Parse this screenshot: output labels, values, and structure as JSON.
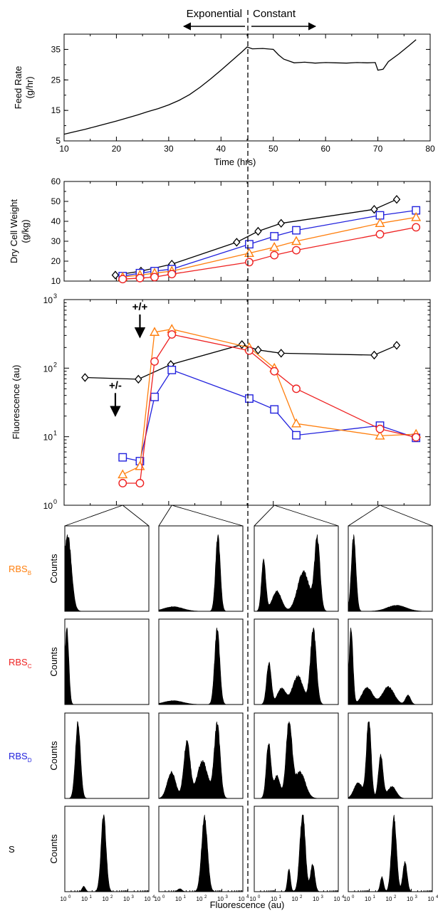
{
  "phase_labels": {
    "left": "Exponential",
    "right": "Constant"
  },
  "shared_x_label": "Fluorescence (au)",
  "colors": {
    "RBS_B": "#ff7f0e",
    "RBS_C": "#ee2222",
    "RBS_D": "#2222dd",
    "S": "#000000",
    "black": "#000000"
  },
  "histogram_rows": [
    {
      "label": "RBS",
      "subscript": "B",
      "color_key": "RBS_B",
      "ylabel": "Counts"
    },
    {
      "label": "RBS",
      "subscript": "C",
      "color_key": "RBS_C",
      "ylabel": "Counts"
    },
    {
      "label": "RBS",
      "subscript": "D",
      "color_key": "RBS_D",
      "ylabel": "Counts"
    },
    {
      "label": "S",
      "subscript": "",
      "color_key": "S",
      "ylabel": "Counts"
    }
  ],
  "chart_data": [
    {
      "id": "feed-rate",
      "type": "line",
      "xlabel": "Time (hrs)",
      "ylabel": [
        "Feed Rate",
        "(g/hr)"
      ],
      "xlim": [
        10,
        80
      ],
      "ylim": [
        5,
        40
      ],
      "xticks": [
        10,
        20,
        30,
        40,
        50,
        60,
        70,
        80
      ],
      "yticks": [
        5,
        15,
        25,
        35
      ],
      "series": [
        {
          "color": "#000000",
          "x": [
            10,
            12,
            14,
            16,
            18,
            20,
            22,
            24,
            26,
            28,
            30,
            32,
            34,
            36,
            38,
            40,
            42,
            44,
            45,
            46,
            48,
            50,
            51,
            52,
            54,
            56,
            58,
            60,
            62,
            64,
            66,
            68,
            69.5,
            70,
            71,
            72,
            74,
            76,
            77.3
          ],
          "y": [
            7.2,
            8,
            8.8,
            9.7,
            10.6,
            11.5,
            12.5,
            13.5,
            14.6,
            15.6,
            16.8,
            18.3,
            20.2,
            22.6,
            25.3,
            28.2,
            31.2,
            34.2,
            35.8,
            35.2,
            35.3,
            35,
            33.2,
            31.8,
            30.6,
            30.8,
            30.5,
            30.7,
            30.6,
            30.5,
            30.7,
            30.6,
            30.7,
            28.2,
            28.5,
            31,
            33.5,
            36.3,
            38.2
          ]
        }
      ]
    },
    {
      "id": "dry-cell-weight",
      "type": "line",
      "markers": true,
      "ylabel": [
        "Dry Cell Weight",
        "(g/kg)"
      ],
      "xlim": [
        10,
        80
      ],
      "ylim": [
        10,
        60
      ],
      "xticks": [
        10,
        20,
        30,
        40,
        50,
        60,
        70,
        80
      ],
      "yticks": [
        10,
        20,
        30,
        40,
        50,
        60
      ],
      "series": [
        {
          "name": "S",
          "color_key": "black",
          "marker": "diamond",
          "x": [
            19.8,
            24.7,
            30.6,
            43,
            47.1,
            51.5,
            69.3,
            73.6
          ],
          "y": [
            13,
            15,
            18.5,
            29.5,
            35,
            39,
            46,
            51
          ]
        },
        {
          "name": "RBS_D",
          "color_key": "RBS_D",
          "marker": "square",
          "x": [
            21.2,
            24.5,
            27.3,
            30.6,
            45.4,
            50.2,
            54.4,
            70.4,
            77.3
          ],
          "y": [
            12.5,
            14,
            15,
            16,
            28.5,
            32.5,
            35.5,
            43,
            45.5
          ]
        },
        {
          "name": "RBS_B",
          "color_key": "RBS_B",
          "marker": "triangle",
          "x": [
            21.2,
            24.5,
            27.3,
            30.6,
            45.4,
            50.2,
            54.4,
            70.4,
            77.3
          ],
          "y": [
            12,
            13,
            14,
            15,
            24,
            27,
            30,
            39,
            42
          ]
        },
        {
          "name": "RBS_C",
          "color_key": "RBS_C",
          "marker": "circle",
          "x": [
            21.2,
            24.5,
            27.3,
            30.6,
            45.4,
            50.2,
            54.4,
            70.4,
            77.3
          ],
          "y": [
            11,
            11.5,
            12,
            13.5,
            19.5,
            23,
            25.5,
            33.5,
            37
          ]
        }
      ]
    },
    {
      "id": "fluorescence",
      "type": "line",
      "markers": true,
      "ylog": true,
      "ylabel": [
        "Fluorescence (au)"
      ],
      "xlim": [
        10,
        80
      ],
      "ylim": [
        1,
        1000
      ],
      "xticks": [
        10,
        20,
        30,
        40,
        50,
        60,
        70,
        80
      ],
      "yticks": [
        1,
        10,
        100,
        1000
      ],
      "annotations": [
        {
          "text": "+/+",
          "x": 24.5,
          "y": 700
        },
        {
          "text": "+/-",
          "x": 19.8,
          "y": 50
        }
      ],
      "series": [
        {
          "name": "S",
          "color_key": "black",
          "marker": "diamond",
          "x": [
            14,
            24.2,
            30.4,
            44,
            47.1,
            51.5,
            69.3,
            73.6
          ],
          "y": [
            73,
            69,
            113,
            221,
            184,
            165,
            155,
            215
          ]
        },
        {
          "name": "RBS_D",
          "color_key": "RBS_D",
          "marker": "square",
          "x": [
            21.2,
            24.5,
            27.3,
            30.6,
            45.4,
            50.2,
            54.4,
            70.4,
            77.3
          ],
          "y": [
            5,
            4.4,
            38,
            94,
            36,
            25,
            10.5,
            14.5,
            9.6
          ]
        },
        {
          "name": "RBS_B",
          "color_key": "RBS_B",
          "marker": "triangle",
          "x": [
            21.2,
            24.5,
            27.3,
            30.6,
            45.4,
            50.2,
            54.4,
            70.4,
            77.3
          ],
          "y": [
            2.8,
            3.7,
            335,
            370,
            200,
            100,
            15.5,
            10.3,
            10.9
          ]
        },
        {
          "name": "RBS_C",
          "color_key": "RBS_C",
          "marker": "circle",
          "x": [
            21.2,
            24.5,
            27.3,
            30.6,
            45.4,
            50.2,
            54.4,
            70.4,
            77.3
          ],
          "y": [
            2.1,
            2.1,
            125,
            310,
            180,
            90,
            50,
            13,
            9.8
          ]
        }
      ]
    },
    {
      "id": "histograms",
      "type": "area",
      "xlog": true,
      "xlim": [
        1,
        10000
      ],
      "xticks": [
        1,
        10,
        100,
        1000,
        10000
      ],
      "ylabel": "Counts",
      "xlabel": "Fluorescence (au)",
      "column_times_hrs": [
        21.2,
        30.6,
        50.2,
        70.4
      ],
      "rows": {
        "RBS_B": [
          [
            [
              1.35,
              1.0,
              0.18
            ]
          ],
          [
            [
              650,
              1.0,
              0.11
            ],
            [
              5,
              0.06,
              0.45
            ]
          ],
          [
            [
              1000,
              1.0,
              0.13
            ],
            [
              220,
              0.55,
              0.28
            ],
            [
              2.8,
              0.72,
              0.1
            ],
            [
              12,
              0.28,
              0.22
            ]
          ],
          [
            [
              1.8,
              1.0,
              0.11
            ],
            [
              200,
              0.08,
              0.45
            ]
          ]
        ],
        "RBS_C": [
          [
            [
              1.25,
              1.0,
              0.09
            ]
          ],
          [
            [
              600,
              1.0,
              0.12
            ],
            [
              5,
              0.05,
              0.45
            ]
          ],
          [
            [
              650,
              1.0,
              0.14
            ],
            [
              120,
              0.38,
              0.25
            ],
            [
              5,
              0.55,
              0.11
            ],
            [
              20,
              0.22,
              0.2
            ]
          ],
          [
            [
              1.35,
              1.0,
              0.09
            ],
            [
              8,
              0.22,
              0.25
            ],
            [
              80,
              0.23,
              0.28
            ],
            [
              700,
              0.12,
              0.12
            ]
          ]
        ],
        "RBS_D": [
          [
            [
              4.2,
              1.0,
              0.12
            ]
          ],
          [
            [
              600,
              1.0,
              0.14
            ],
            [
              22,
              0.78,
              0.15
            ],
            [
              120,
              0.5,
              0.25
            ],
            [
              4,
              0.35,
              0.2
            ]
          ],
          [
            [
              45,
              1.0,
              0.14
            ],
            [
              4.8,
              0.72,
              0.11
            ],
            [
              150,
              0.35,
              0.25
            ],
            [
              12,
              0.3,
              0.15
            ]
          ],
          [
            [
              9.5,
              1.0,
              0.11
            ],
            [
              35,
              0.55,
              0.11
            ],
            [
              3,
              0.2,
              0.2
            ],
            [
              120,
              0.15,
              0.2
            ]
          ]
        ],
        "S": [
          [
            [
              70,
              1.0,
              0.12
            ],
            [
              8,
              0.07,
              0.08
            ]
          ],
          [
            [
              150,
              1.0,
              0.14
            ],
            [
              10,
              0.04,
              0.1
            ]
          ],
          [
            [
              200,
              1.0,
              0.13
            ],
            [
              45,
              0.3,
              0.07
            ],
            [
              600,
              0.35,
              0.1
            ]
          ],
          [
            [
              150,
              1.0,
              0.12
            ],
            [
              40,
              0.2,
              0.08
            ],
            [
              500,
              0.4,
              0.1
            ]
          ]
        ]
      }
    }
  ]
}
